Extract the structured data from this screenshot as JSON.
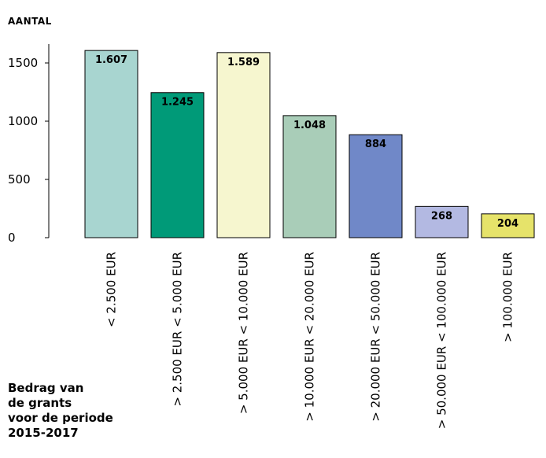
{
  "chart_data": {
    "type": "bar",
    "ylabel": "AANTAL",
    "xlabel": "Bedrag van\nde grants\nvoor de periode\n2015-2017",
    "ylim": [
      0,
      1700
    ],
    "yticks": [
      0,
      500,
      1000,
      1500
    ],
    "grid": false,
    "categories": [
      "< 2.500 EUR",
      "> 2.500 EUR < 5.000 EUR",
      "> 5.000 EUR < 10.000 EUR",
      "> 10.000 EUR < 20.000 EUR",
      "> 20.000 EUR < 50.000 EUR",
      "> 50.000 EUR < 100.000 EUR",
      "> 100.000 EUR"
    ],
    "values": [
      1607,
      1245,
      1589,
      1048,
      884,
      268,
      204
    ],
    "data_labels": [
      "1.607",
      "1.245",
      "1.589",
      "1.048",
      "884",
      "268",
      "204"
    ],
    "colors": [
      "#a8d5d0",
      "#009a78",
      "#f6f6cf",
      "#a9cdb8",
      "#7088c8",
      "#b3b9e2",
      "#e6e36a"
    ]
  }
}
